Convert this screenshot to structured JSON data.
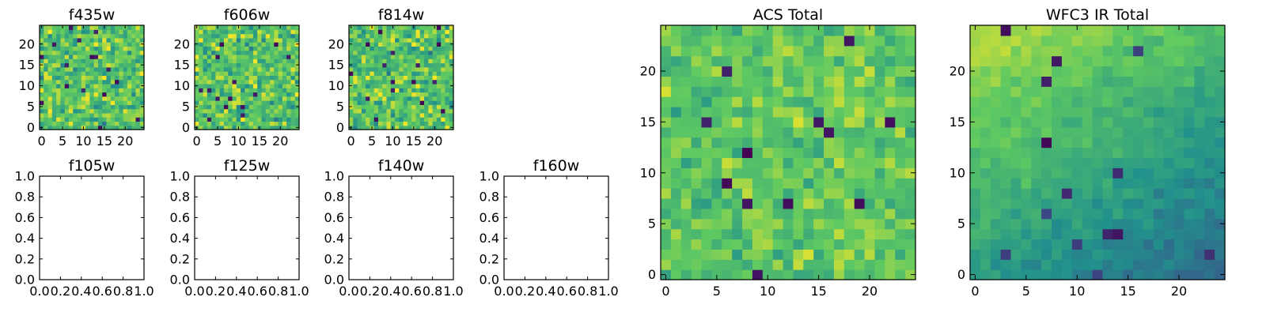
{
  "figure": {
    "background": "#ffffff",
    "colormap": "viridis",
    "colormap_stops": [
      "#440154",
      "#3b528b",
      "#21918c",
      "#5ec962",
      "#fde725"
    ]
  },
  "chart_data": [
    {
      "type": "heatmap",
      "title": "f435w",
      "grid_size": 25,
      "xlim": [
        -0.5,
        24.5
      ],
      "ylim": [
        -0.5,
        24.5
      ],
      "xticks": [
        0,
        5,
        10,
        15,
        20
      ],
      "yticks": [
        0,
        5,
        10,
        15,
        20
      ],
      "xtick_labels": [
        "0",
        "5",
        "10",
        "15",
        "20"
      ],
      "ytick_labels": [
        "0",
        "5",
        "10",
        "15",
        "20"
      ],
      "seed": 11,
      "mean": 0.72,
      "noise": 0.24,
      "trend": 0.0,
      "dark_pixels": 16
    },
    {
      "type": "heatmap",
      "title": "f606w",
      "grid_size": 25,
      "xlim": [
        -0.5,
        24.5
      ],
      "ylim": [
        -0.5,
        24.5
      ],
      "xticks": [
        0,
        5,
        10,
        15,
        20
      ],
      "yticks": [
        0,
        5,
        10,
        15,
        20
      ],
      "xtick_labels": [
        "0",
        "5",
        "10",
        "15",
        "20"
      ],
      "ytick_labels": [
        "0",
        "5",
        "10",
        "15",
        "20"
      ],
      "seed": 23,
      "mean": 0.72,
      "noise": 0.24,
      "trend": 0.0,
      "dark_pixels": 14
    },
    {
      "type": "heatmap",
      "title": "f814w",
      "grid_size": 25,
      "xlim": [
        -0.5,
        24.5
      ],
      "ylim": [
        -0.5,
        24.5
      ],
      "xticks": [
        0,
        5,
        10,
        15,
        20
      ],
      "yticks": [
        0,
        5,
        10,
        15,
        20
      ],
      "xtick_labels": [
        "0",
        "5",
        "10",
        "15",
        "20"
      ],
      "ytick_labels": [
        "0",
        "5",
        "10",
        "15",
        "20"
      ],
      "seed": 37,
      "mean": 0.72,
      "noise": 0.24,
      "trend": 0.0,
      "dark_pixels": 16
    },
    {
      "type": "empty",
      "title": "f105w",
      "xlim": [
        0,
        1
      ],
      "ylim": [
        0,
        1
      ],
      "xtick_labels": [
        "0.0",
        "0.2",
        "0.4",
        "0.6",
        "0.8",
        "1.0"
      ],
      "ytick_labels": [
        "0.0",
        "0.2",
        "0.4",
        "0.6",
        "0.8",
        "1.0"
      ]
    },
    {
      "type": "empty",
      "title": "f125w",
      "xlim": [
        0,
        1
      ],
      "ylim": [
        0,
        1
      ],
      "xtick_labels": [
        "0.0",
        "0.2",
        "0.4",
        "0.6",
        "0.8",
        "1.0"
      ],
      "ytick_labels": [
        "0.0",
        "0.2",
        "0.4",
        "0.6",
        "0.8",
        "1.0"
      ]
    },
    {
      "type": "empty",
      "title": "f140w",
      "xlim": [
        0,
        1
      ],
      "ylim": [
        0,
        1
      ],
      "xtick_labels": [
        "0.0",
        "0.2",
        "0.4",
        "0.6",
        "0.8",
        "1.0"
      ],
      "ytick_labels": [
        "0.0",
        "0.2",
        "0.4",
        "0.6",
        "0.8",
        "1.0"
      ]
    },
    {
      "type": "empty",
      "title": "f160w",
      "xlim": [
        0,
        1
      ],
      "ylim": [
        0,
        1
      ],
      "xtick_labels": [
        "0.0",
        "0.2",
        "0.4",
        "0.6",
        "0.8",
        "1.0"
      ],
      "ytick_labels": [
        "0.0",
        "0.2",
        "0.4",
        "0.6",
        "0.8",
        "1.0"
      ]
    },
    {
      "type": "heatmap",
      "title": "ACS Total",
      "grid_size": 25,
      "xlim": [
        -0.5,
        24.5
      ],
      "ylim": [
        -0.5,
        24.5
      ],
      "xticks": [
        0,
        5,
        10,
        15,
        20
      ],
      "yticks": [
        0,
        5,
        10,
        15,
        20
      ],
      "xtick_labels": [
        "0",
        "5",
        "10",
        "15",
        "20"
      ],
      "ytick_labels": [
        "0",
        "5",
        "10",
        "15",
        "20"
      ],
      "seed": 53,
      "mean": 0.74,
      "noise": 0.16,
      "trend": 0.0,
      "dark_pixels": 12
    },
    {
      "type": "heatmap",
      "title": "WFC3 IR Total",
      "grid_size": 25,
      "xlim": [
        -0.5,
        24.5
      ],
      "ylim": [
        -0.5,
        24.5
      ],
      "xticks": [
        0,
        5,
        10,
        15,
        20
      ],
      "yticks": [
        0,
        5,
        10,
        15,
        20
      ],
      "xtick_labels": [
        "0",
        "5",
        "10",
        "15",
        "20"
      ],
      "ytick_labels": [
        "0",
        "5",
        "10",
        "15",
        "20"
      ],
      "seed": 71,
      "mean": 0.62,
      "noise": 0.07,
      "trend": 0.35,
      "dark_pixels": 14
    }
  ]
}
